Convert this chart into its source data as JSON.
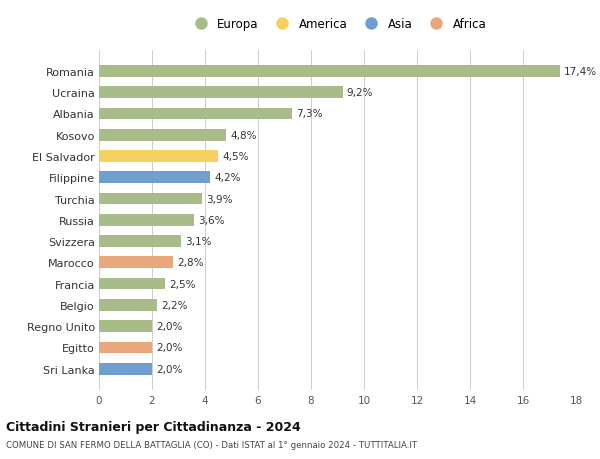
{
  "categories": [
    "Sri Lanka",
    "Egitto",
    "Regno Unito",
    "Belgio",
    "Francia",
    "Marocco",
    "Svizzera",
    "Russia",
    "Turchia",
    "Filippine",
    "El Salvador",
    "Kosovo",
    "Albania",
    "Ucraina",
    "Romania"
  ],
  "values": [
    2.0,
    2.0,
    2.0,
    2.2,
    2.5,
    2.8,
    3.1,
    3.6,
    3.9,
    4.2,
    4.5,
    4.8,
    7.3,
    9.2,
    17.4
  ],
  "labels": [
    "2,0%",
    "2,0%",
    "2,0%",
    "2,2%",
    "2,5%",
    "2,8%",
    "3,1%",
    "3,6%",
    "3,9%",
    "4,2%",
    "4,5%",
    "4,8%",
    "7,3%",
    "9,2%",
    "17,4%"
  ],
  "colors": [
    "#6f9fcf",
    "#e8a87c",
    "#a8bc8a",
    "#a8bc8a",
    "#a8bc8a",
    "#e8a87c",
    "#a8bc8a",
    "#a8bc8a",
    "#a8bc8a",
    "#6f9fcf",
    "#f5d060",
    "#a8bc8a",
    "#a8bc8a",
    "#a8bc8a",
    "#a8bc8a"
  ],
  "legend": [
    {
      "label": "Europa",
      "color": "#a8bc8a"
    },
    {
      "label": "America",
      "color": "#f5d060"
    },
    {
      "label": "Asia",
      "color": "#6f9fcf"
    },
    {
      "label": "Africa",
      "color": "#e8a87c"
    }
  ],
  "title": "Cittadini Stranieri per Cittadinanza - 2024",
  "subtitle": "COMUNE DI SAN FERMO DELLA BATTAGLIA (CO) - Dati ISTAT al 1° gennaio 2024 - TUTTITALIA.IT",
  "xlim": [
    0,
    18
  ],
  "xticks": [
    0,
    2,
    4,
    6,
    8,
    10,
    12,
    14,
    16,
    18
  ],
  "background_color": "#ffffff",
  "grid_color": "#cccccc",
  "bar_height": 0.55
}
